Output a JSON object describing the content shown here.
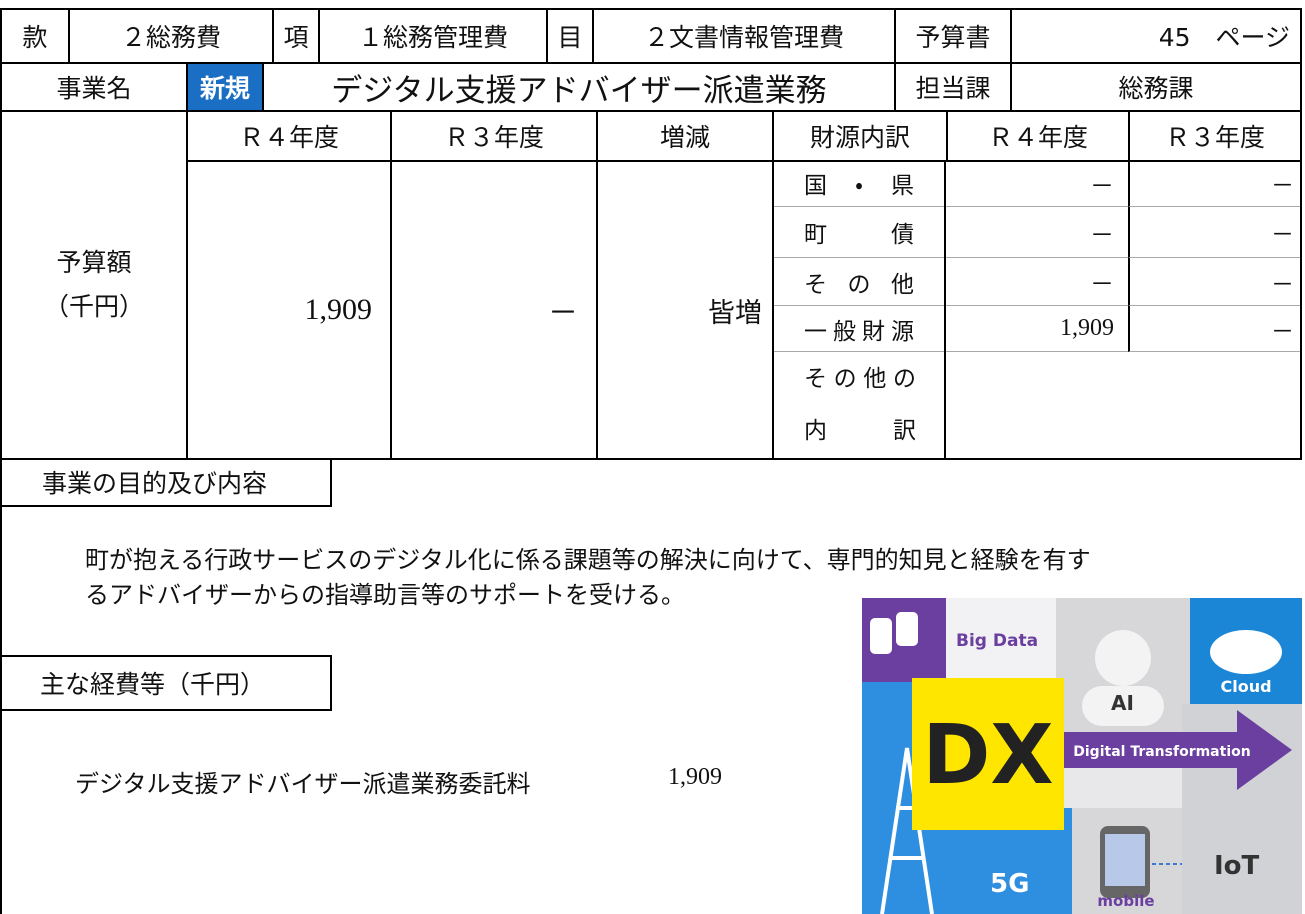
{
  "header": {
    "kan_label": "款",
    "kan": "２総務費",
    "kou_label": "項",
    "kou": "１総務管理費",
    "moku_label": "目",
    "moku": "２文書情報管理費",
    "budget_book_label": "予算書",
    "budget_book_page": "45　ページ"
  },
  "project": {
    "label": "事業名",
    "badge": "新規",
    "name": "デジタル支援アドバイザー派遣業務",
    "dept_label": "担当課",
    "dept": "総務課"
  },
  "budget_table": {
    "columns": [
      "Ｒ４年度",
      "Ｒ３年度",
      "増減"
    ],
    "row_label": [
      "予算額",
      "（千円）"
    ],
    "values": [
      "1,909",
      "－",
      "皆増"
    ],
    "source_header": "財源内訳",
    "source_columns": [
      "Ｒ４年度",
      "Ｒ３年度"
    ],
    "sources": [
      {
        "name": "国・県",
        "r4": "－",
        "r3": "－"
      },
      {
        "name": "町債",
        "r4": "－",
        "r3": "－"
      },
      {
        "name": "その他",
        "r4": "－",
        "r3": "－"
      },
      {
        "name": "一般財源",
        "r4": "1,909",
        "r3": "－"
      }
    ],
    "other_breakdown": [
      "その他の",
      "内訳"
    ]
  },
  "purpose": {
    "heading": "事業の目的及び内容",
    "lines": [
      "町が抱える行政サービスのデジタル化に係る課題等の解決に向けて、専門的知見と経験を有す",
      "るアドバイザーからの指導助言等のサポートを受ける。"
    ]
  },
  "expenses": {
    "heading": "主な経費等（千円）",
    "items": [
      {
        "name": "デジタル支援アドバイザー派遣業務委託料",
        "amount": "1,909"
      }
    ]
  },
  "illustration": {
    "big_data": "Big Data",
    "ai": "AI",
    "cloud": "Cloud",
    "dx": "DX",
    "digital_transformation": "Digital Transformation",
    "iot": "IoT",
    "g5": "5G",
    "mobile": "mobile"
  }
}
